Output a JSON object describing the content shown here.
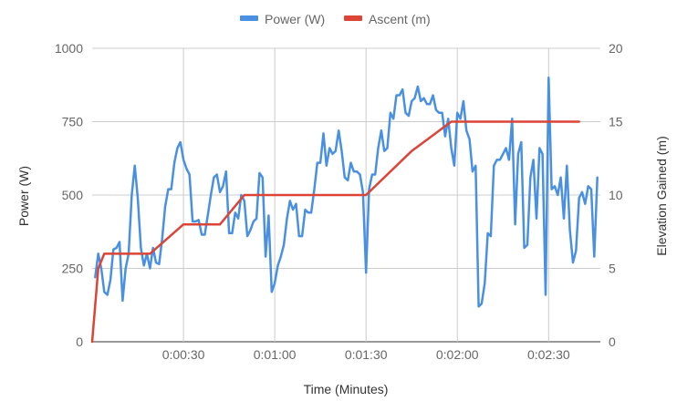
{
  "chart_data": {
    "type": "line",
    "legend_position": "top-center",
    "grid": true,
    "xlabel": "Time (Minutes)",
    "ylabel_left": "Power (W)",
    "ylabel_right": "Elevation Gained (m)",
    "xlim_seconds": [
      0,
      167
    ],
    "x_ticks": [
      {
        "value": 30,
        "label": "0:00:30"
      },
      {
        "value": 60,
        "label": "0:01:00"
      },
      {
        "value": 90,
        "label": "0:01:30"
      },
      {
        "value": 120,
        "label": "0:02:00"
      },
      {
        "value": 150,
        "label": "0:02:30"
      }
    ],
    "ylim_left": [
      0,
      1000
    ],
    "y_ticks_left": [
      "0",
      "250",
      "500",
      "750",
      "1000"
    ],
    "ylim_right": [
      0,
      20
    ],
    "y_ticks_right": [
      "0",
      "5",
      "10",
      "15",
      "20"
    ],
    "series": [
      {
        "name": "Power (W)",
        "axis": "left",
        "color": "#4a90e2",
        "points": [
          [
            1,
            220
          ],
          [
            2,
            300
          ],
          [
            3,
            250
          ],
          [
            4,
            170
          ],
          [
            5,
            160
          ],
          [
            6,
            210
          ],
          [
            7,
            315
          ],
          [
            8,
            320
          ],
          [
            9,
            340
          ],
          [
            10,
            140
          ],
          [
            11,
            250
          ],
          [
            12,
            300
          ],
          [
            13,
            500
          ],
          [
            14,
            600
          ],
          [
            15,
            490
          ],
          [
            16,
            320
          ],
          [
            17,
            260
          ],
          [
            18,
            300
          ],
          [
            19,
            250
          ],
          [
            20,
            320
          ],
          [
            21,
            270
          ],
          [
            22,
            265
          ],
          [
            23,
            350
          ],
          [
            24,
            460
          ],
          [
            25,
            520
          ],
          [
            26,
            520
          ],
          [
            27,
            610
          ],
          [
            28,
            660
          ],
          [
            29,
            680
          ],
          [
            30,
            620
          ],
          [
            31,
            590
          ],
          [
            32,
            570
          ],
          [
            33,
            410
          ],
          [
            34,
            410
          ],
          [
            35,
            415
          ],
          [
            36,
            365
          ],
          [
            37,
            365
          ],
          [
            38,
            430
          ],
          [
            39,
            500
          ],
          [
            40,
            560
          ],
          [
            41,
            570
          ],
          [
            42,
            510
          ],
          [
            43,
            530
          ],
          [
            44,
            580
          ],
          [
            45,
            370
          ],
          [
            46,
            370
          ],
          [
            47,
            440
          ],
          [
            48,
            420
          ],
          [
            49,
            500
          ],
          [
            50,
            480
          ],
          [
            51,
            360
          ],
          [
            52,
            380
          ],
          [
            53,
            410
          ],
          [
            54,
            420
          ],
          [
            55,
            575
          ],
          [
            56,
            560
          ],
          [
            57,
            290
          ],
          [
            58,
            430
          ],
          [
            59,
            170
          ],
          [
            60,
            200
          ],
          [
            61,
            260
          ],
          [
            62,
            290
          ],
          [
            63,
            330
          ],
          [
            64,
            420
          ],
          [
            65,
            480
          ],
          [
            66,
            450
          ],
          [
            67,
            470
          ],
          [
            68,
            360
          ],
          [
            69,
            360
          ],
          [
            70,
            450
          ],
          [
            71,
            440
          ],
          [
            72,
            440
          ],
          [
            73,
            520
          ],
          [
            74,
            610
          ],
          [
            75,
            610
          ],
          [
            76,
            710
          ],
          [
            77,
            600
          ],
          [
            78,
            660
          ],
          [
            79,
            640
          ],
          [
            80,
            650
          ],
          [
            81,
            720
          ],
          [
            82,
            650
          ],
          [
            83,
            560
          ],
          [
            84,
            550
          ],
          [
            85,
            610
          ],
          [
            86,
            580
          ],
          [
            87,
            580
          ],
          [
            88,
            570
          ],
          [
            89,
            510
          ],
          [
            90,
            235
          ],
          [
            91,
            520
          ],
          [
            92,
            570
          ],
          [
            93,
            570
          ],
          [
            94,
            660
          ],
          [
            95,
            720
          ],
          [
            96,
            650
          ],
          [
            97,
            660
          ],
          [
            98,
            780
          ],
          [
            99,
            760
          ],
          [
            100,
            840
          ],
          [
            101,
            840
          ],
          [
            102,
            860
          ],
          [
            103,
            780
          ],
          [
            104,
            770
          ],
          [
            105,
            820
          ],
          [
            106,
            830
          ],
          [
            107,
            870
          ],
          [
            108,
            820
          ],
          [
            109,
            830
          ],
          [
            110,
            810
          ],
          [
            111,
            810
          ],
          [
            112,
            840
          ],
          [
            113,
            790
          ],
          [
            114,
            780
          ],
          [
            115,
            780
          ],
          [
            116,
            700
          ],
          [
            117,
            760
          ],
          [
            118,
            660
          ],
          [
            119,
            600
          ],
          [
            120,
            780
          ],
          [
            121,
            760
          ],
          [
            122,
            820
          ],
          [
            123,
            720
          ],
          [
            124,
            690
          ],
          [
            125,
            580
          ],
          [
            126,
            600
          ],
          [
            127,
            120
          ],
          [
            128,
            130
          ],
          [
            129,
            200
          ],
          [
            130,
            370
          ],
          [
            131,
            360
          ],
          [
            132,
            600
          ],
          [
            133,
            620
          ],
          [
            134,
            620
          ],
          [
            135,
            640
          ],
          [
            136,
            660
          ],
          [
            137,
            620
          ],
          [
            138,
            760
          ],
          [
            139,
            400
          ],
          [
            140,
            640
          ],
          [
            141,
            680
          ],
          [
            142,
            320
          ],
          [
            143,
            330
          ],
          [
            144,
            560
          ],
          [
            145,
            620
          ],
          [
            146,
            420
          ],
          [
            147,
            660
          ],
          [
            148,
            640
          ],
          [
            149,
            160
          ],
          [
            150,
            900
          ],
          [
            151,
            520
          ],
          [
            152,
            530
          ],
          [
            153,
            500
          ],
          [
            154,
            560
          ],
          [
            155,
            420
          ],
          [
            156,
            600
          ],
          [
            157,
            380
          ],
          [
            158,
            270
          ],
          [
            159,
            310
          ],
          [
            160,
            490
          ],
          [
            161,
            510
          ],
          [
            162,
            470
          ],
          [
            163,
            530
          ],
          [
            164,
            520
          ],
          [
            165,
            290
          ],
          [
            166,
            560
          ]
        ]
      },
      {
        "name": "Ascent (m)",
        "axis": "right",
        "color": "#db4437",
        "points": [
          [
            0,
            0
          ],
          [
            2,
            5
          ],
          [
            4,
            6
          ],
          [
            19,
            6
          ],
          [
            30,
            8
          ],
          [
            42,
            8
          ],
          [
            50,
            10
          ],
          [
            78,
            10
          ],
          [
            90,
            10
          ],
          [
            105,
            13
          ],
          [
            118,
            15
          ],
          [
            120,
            15
          ],
          [
            160,
            15
          ]
        ]
      }
    ]
  }
}
